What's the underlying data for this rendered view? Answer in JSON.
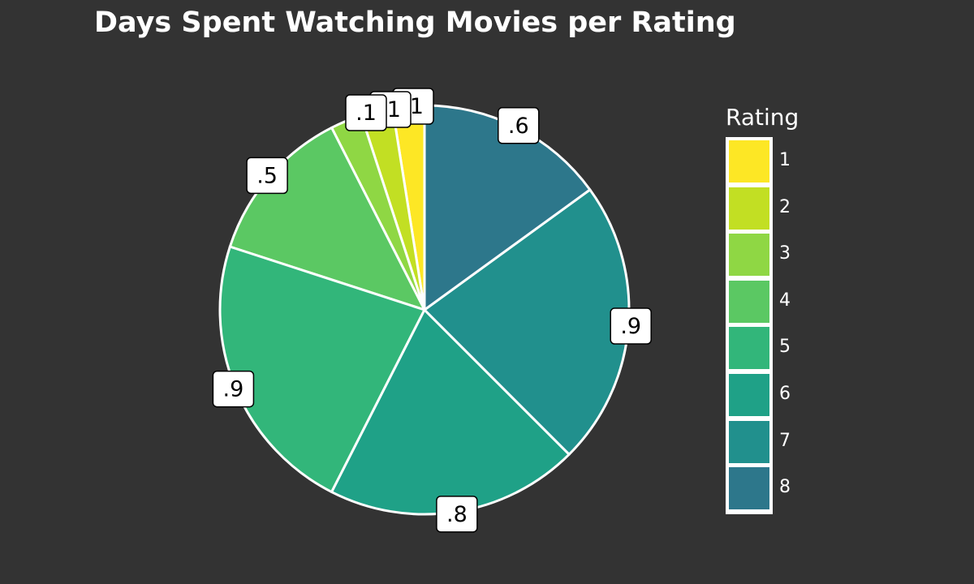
{
  "chart_data": {
    "type": "pie",
    "title": "Days Spent Watching Movies per Rating",
    "legend_title": "Rating",
    "legend_position": "right",
    "categories": [
      "1",
      "2",
      "3",
      "4",
      "5",
      "6",
      "7",
      "8"
    ],
    "values": [
      0.1,
      0.1,
      0.1,
      0.5,
      0.9,
      0.8,
      0.9,
      0.6
    ],
    "labels": [
      ".1",
      ".1",
      ".1",
      ".5",
      ".9",
      ".8",
      ".9",
      ".6"
    ],
    "colors": [
      "#FDE725",
      "#C2DF23",
      "#8FD744",
      "#5BC863",
      "#32B67A",
      "#1FA187",
      "#21908D",
      "#2D778B"
    ]
  }
}
